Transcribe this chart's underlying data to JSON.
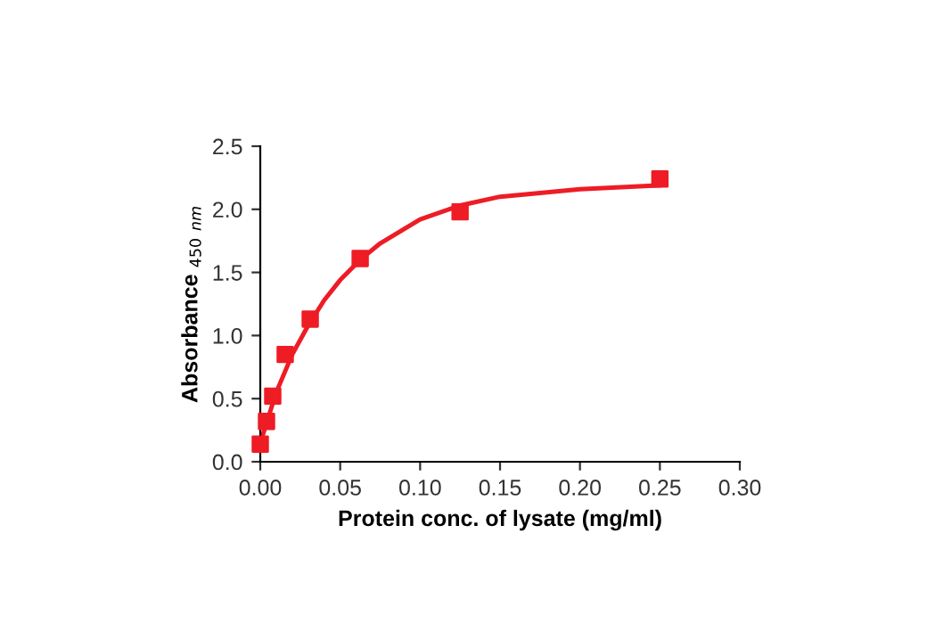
{
  "chart_data": {
    "type": "scatter",
    "xlabel": "Protein conc. of lysate (mg/ml)",
    "ylabel": "Absorbance $_{450}$ $_{nm}$",
    "xlim": [
      0,
      0.3
    ],
    "xticks": [
      {
        "value": 0,
        "label": "0.00"
      },
      {
        "value": 0.05,
        "label": "0.05"
      },
      {
        "value": 0.1,
        "label": "0.10"
      },
      {
        "value": 0.15,
        "label": "0.15"
      },
      {
        "value": 0.2,
        "label": "0.20"
      },
      {
        "value": 0.25,
        "label": "0.25"
      },
      {
        "value": 0.3,
        "label": "0.30"
      }
    ],
    "ylim": [
      0,
      2.5
    ],
    "yticks": [
      {
        "value": 0,
        "label": "0.0"
      },
      {
        "value": 0.5,
        "label": "0.5"
      },
      {
        "value": 1,
        "label": "1.0"
      },
      {
        "value": 1.5,
        "label": "1.5"
      },
      {
        "value": 2,
        "label": "2.0"
      },
      {
        "value": 2.5,
        "label": "2.5"
      }
    ],
    "grid": false,
    "legend": false,
    "series": [
      {
        "type": "line",
        "marker": "none",
        "color": "#ee1c25",
        "x": [
          0,
          0.005,
          0.01,
          0.02,
          0.03,
          0.04,
          0.05,
          0.0625,
          0.075,
          0.1,
          0.125,
          0.15,
          0.2,
          0.25
        ],
        "values": [
          0.15,
          0.35,
          0.55,
          0.85,
          1.08,
          1.28,
          1.44,
          1.6,
          1.73,
          1.92,
          2.03,
          2.1,
          2.16,
          2.19
        ]
      },
      {
        "marker": "square",
        "color": "#ee1c25",
        "x": [
          0,
          0.0039,
          0.0078,
          0.0156,
          0.03125,
          0.0625,
          0.125,
          0.25
        ],
        "values": [
          0.14,
          0.32,
          0.52,
          0.85,
          1.13,
          1.61,
          1.98,
          2.24
        ]
      }
    ]
  }
}
